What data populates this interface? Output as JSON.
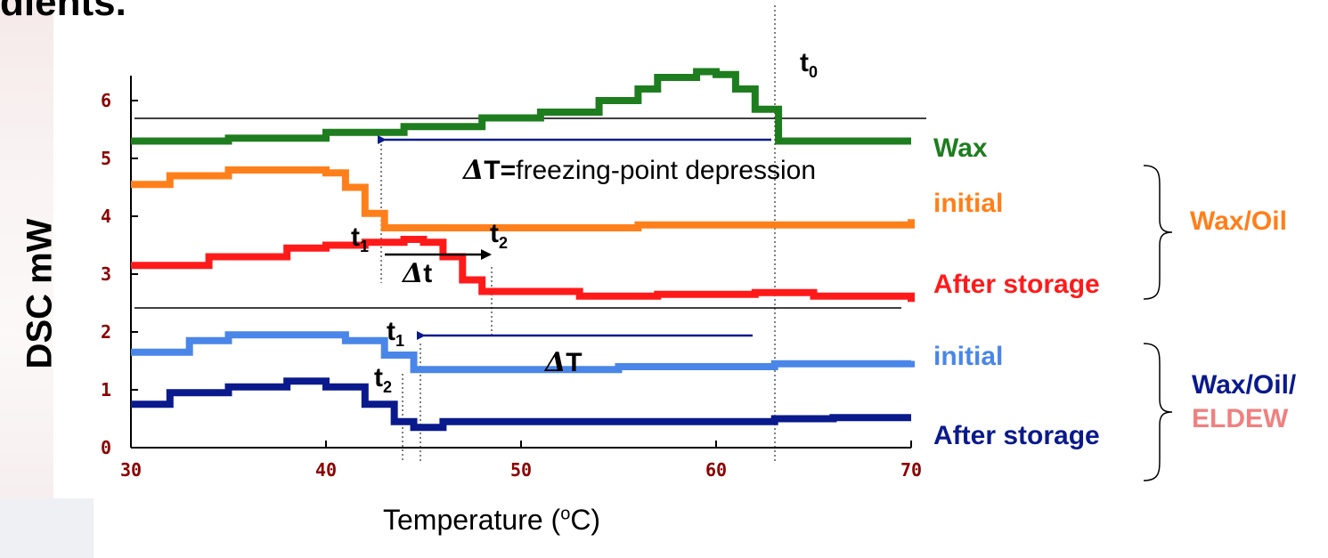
{
  "page_title": "dients.",
  "chart_data": {
    "type": "line",
    "xlabel": "Temperature (",
    "xlabel_sup": "o",
    "xlabel_end": "C)",
    "ylabel": "DSC mW",
    "xlim": [
      30,
      70
    ],
    "ylim": [
      0,
      6.6
    ],
    "x_ticks": [
      30,
      40,
      50,
      60,
      70
    ],
    "y_ticks": [
      0,
      1,
      2,
      3,
      4,
      5,
      6
    ],
    "grid": false,
    "series": [
      {
        "name": "Wax",
        "color": "#1e7d1e",
        "x": [
          30,
          35,
          40,
          44,
          48,
          51,
          54,
          56,
          57,
          59,
          60,
          61,
          62,
          63.2,
          64,
          70
        ],
        "y": [
          5.3,
          5.35,
          5.45,
          5.55,
          5.7,
          5.8,
          6.0,
          6.2,
          6.4,
          6.5,
          6.45,
          6.2,
          5.85,
          5.3,
          5.3,
          5.3
        ]
      },
      {
        "name": "initial",
        "color": "#ff7f1a",
        "x": [
          30,
          32,
          35,
          38.5,
          40,
          41,
          42,
          43,
          45,
          51,
          56,
          63,
          67,
          70
        ],
        "y": [
          4.55,
          4.7,
          4.8,
          4.8,
          4.75,
          4.5,
          4.05,
          3.8,
          3.8,
          3.8,
          3.85,
          3.85,
          3.85,
          3.95
        ]
      },
      {
        "name": "After storage",
        "color": "#ff1a1a",
        "x": [
          30,
          34,
          38,
          40,
          42,
          44,
          45,
          46,
          47,
          48,
          50,
          53,
          57,
          62,
          65,
          70
        ],
        "y": [
          3.15,
          3.3,
          3.45,
          3.5,
          3.55,
          3.6,
          3.55,
          3.3,
          2.9,
          2.7,
          2.7,
          2.62,
          2.65,
          2.68,
          2.62,
          2.52
        ]
      },
      {
        "name": "initial",
        "color": "#4a86e8",
        "x": [
          30,
          33,
          35,
          39,
          41,
          43,
          44.5,
          46,
          55,
          63,
          68,
          70
        ],
        "y": [
          1.65,
          1.85,
          1.95,
          1.95,
          1.85,
          1.6,
          1.35,
          1.35,
          1.4,
          1.45,
          1.45,
          1.5
        ]
      },
      {
        "name": "After storage",
        "color": "#0a1a8c",
        "x": [
          30,
          32,
          35,
          38,
          40,
          42,
          43.5,
          44.5,
          46,
          52,
          60,
          63,
          66,
          70
        ],
        "y": [
          0.75,
          0.95,
          1.05,
          1.15,
          1.05,
          0.75,
          0.45,
          0.35,
          0.45,
          0.45,
          0.45,
          0.5,
          0.52,
          0.52
        ]
      }
    ]
  },
  "groups": {
    "wax_oil": "Wax/Oil",
    "wax_oil_eldew_1": "Wax/Oil/",
    "wax_oil_eldew_2": "ELDEW"
  },
  "annotations": {
    "t0": "t",
    "t0_sub": "0",
    "dT_sym": "Δ",
    "dT_main": "T=",
    "dT_text": "freezing-point depression",
    "t1": "t",
    "t1_sub": "1",
    "t2": "t",
    "t2_sub": "2",
    "dt_sym": "Δ",
    "dt": "t",
    "t1b": "t",
    "t1b_sub": "1",
    "t2b": "t",
    "t2b_sub": "2",
    "dT2_sym": "Δ",
    "dT2": "T"
  },
  "colors": {
    "wax": "#1e7d1e",
    "wax_oil_initial": "#ff7f1a",
    "wax_oil_after": "#ff1a1a",
    "eldew_initial": "#4a86e8",
    "eldew_after": "#0a1a8c",
    "eldew_label": "#f08080",
    "tick_text": "#8b0000",
    "arrow": "#0a1a8c"
  }
}
